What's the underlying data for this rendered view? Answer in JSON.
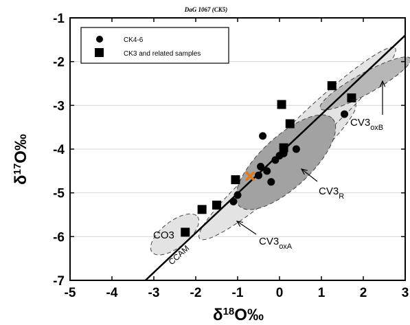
{
  "chart_data": {
    "type": "scatter",
    "title": "DaG 1067 (CK5)",
    "xlabel_base": "δ",
    "xlabel_sup": "18",
    "xlabel_rest": "O‰",
    "ylabel_base": "δ",
    "ylabel_sup": "17",
    "ylabel_rest": "O‰",
    "xlim": [
      -5,
      3
    ],
    "ylim": [
      -7,
      -1
    ],
    "xticks": [
      "-5",
      "-4",
      "-3",
      "-2",
      "-1",
      "0",
      "1",
      "2",
      "3"
    ],
    "yticks": [
      "-1",
      "-2",
      "-3",
      "-4",
      "-5",
      "-6",
      "-7"
    ],
    "grid": "horizontal",
    "legend_position": "top-left",
    "series": [
      {
        "name": "CK4-6",
        "marker": "circle",
        "points": [
          [
            -0.4,
            -3.7
          ],
          [
            -1.1,
            -5.2
          ],
          [
            -1.0,
            -5.05
          ],
          [
            -0.5,
            -4.6
          ],
          [
            -0.45,
            -4.4
          ],
          [
            -0.3,
            -4.5
          ],
          [
            -0.2,
            -4.75
          ],
          [
            -0.1,
            -4.25
          ],
          [
            0.0,
            -4.15
          ],
          [
            0.1,
            -4.1
          ],
          [
            0.4,
            -4.0
          ],
          [
            1.55,
            -3.2
          ]
        ]
      },
      {
        "name": "CK3 and related samples",
        "marker": "square",
        "points": [
          [
            -2.25,
            -5.9
          ],
          [
            -1.85,
            -5.38
          ],
          [
            -1.5,
            -5.28
          ],
          [
            -1.05,
            -4.7
          ],
          [
            0.05,
            -2.98
          ],
          [
            0.1,
            -3.97
          ],
          [
            0.25,
            -3.42
          ],
          [
            1.25,
            -2.55
          ],
          [
            1.72,
            -2.83
          ]
        ]
      }
    ],
    "highlight_point": [
      -0.7,
      -4.62
    ],
    "reference_line": {
      "label": "CCAM",
      "points": [
        [
          -3.2,
          -7.0
        ],
        [
          3.0,
          -1.4
        ]
      ]
    },
    "regions": [
      {
        "label": "CV3",
        "subscript": "oxA"
      },
      {
        "label": "CV3",
        "subscript": "R"
      },
      {
        "label": "CV3",
        "subscript": "oxB"
      },
      {
        "label": "CO3",
        "subscript": ""
      }
    ]
  }
}
